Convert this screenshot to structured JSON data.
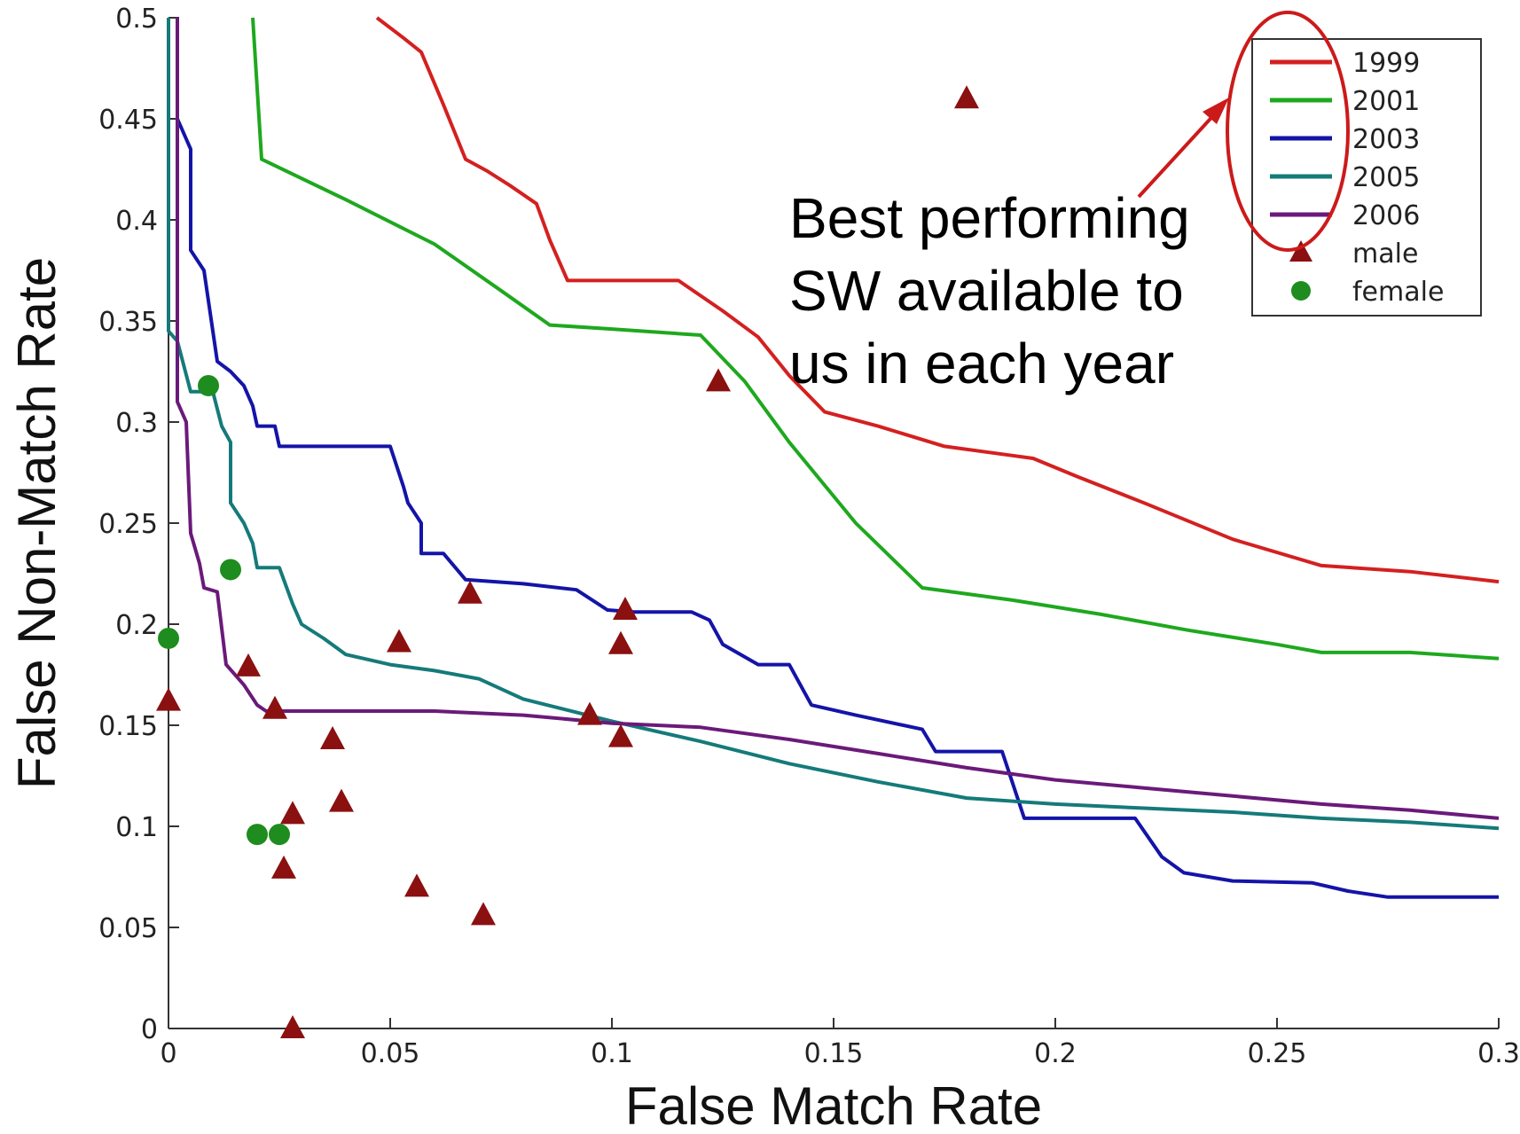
{
  "chart_data": {
    "type": "line",
    "xlabel": "False Match Rate",
    "ylabel": "False Non-Match Rate",
    "xlim": [
      0,
      0.3
    ],
    "ylim": [
      0,
      0.5
    ],
    "xticks": [
      "0",
      "0.05",
      "0.1",
      "0.15",
      "0.2",
      "0.25",
      "0.3"
    ],
    "yticks": [
      "0",
      "0.05",
      "0.1",
      "0.15",
      "0.2",
      "0.25",
      "0.3",
      "0.35",
      "0.4",
      "0.45",
      "0.5"
    ],
    "grid": false,
    "legend_position": "top-right",
    "series": [
      {
        "name": "1999",
        "color": "#d42020",
        "points": [
          [
            0.047,
            0.5
          ],
          [
            0.053,
            0.49
          ],
          [
            0.057,
            0.483
          ],
          [
            0.062,
            0.457
          ],
          [
            0.067,
            0.43
          ],
          [
            0.072,
            0.424
          ],
          [
            0.077,
            0.417
          ],
          [
            0.083,
            0.408
          ],
          [
            0.086,
            0.39
          ],
          [
            0.09,
            0.37
          ],
          [
            0.1,
            0.37
          ],
          [
            0.115,
            0.37
          ],
          [
            0.125,
            0.355
          ],
          [
            0.133,
            0.342
          ],
          [
            0.14,
            0.323
          ],
          [
            0.148,
            0.305
          ],
          [
            0.16,
            0.298
          ],
          [
            0.175,
            0.288
          ],
          [
            0.185,
            0.285
          ],
          [
            0.195,
            0.282
          ],
          [
            0.205,
            0.273
          ],
          [
            0.22,
            0.26
          ],
          [
            0.24,
            0.242
          ],
          [
            0.26,
            0.229
          ],
          [
            0.28,
            0.226
          ],
          [
            0.3,
            0.221
          ]
        ]
      },
      {
        "name": "2001",
        "color": "#1ea81e",
        "points": [
          [
            0.019,
            0.5
          ],
          [
            0.021,
            0.43
          ],
          [
            0.04,
            0.41
          ],
          [
            0.06,
            0.388
          ],
          [
            0.075,
            0.365
          ],
          [
            0.086,
            0.348
          ],
          [
            0.1,
            0.346
          ],
          [
            0.12,
            0.343
          ],
          [
            0.13,
            0.32
          ],
          [
            0.14,
            0.29
          ],
          [
            0.155,
            0.25
          ],
          [
            0.17,
            0.218
          ],
          [
            0.19,
            0.212
          ],
          [
            0.21,
            0.205
          ],
          [
            0.23,
            0.197
          ],
          [
            0.25,
            0.19
          ],
          [
            0.26,
            0.186
          ],
          [
            0.28,
            0.186
          ],
          [
            0.3,
            0.183
          ]
        ]
      },
      {
        "name": "2003",
        "color": "#1414a8",
        "points": [
          [
            0.002,
            0.45
          ],
          [
            0.005,
            0.435
          ],
          [
            0.005,
            0.385
          ],
          [
            0.008,
            0.375
          ],
          [
            0.009,
            0.36
          ],
          [
            0.011,
            0.33
          ],
          [
            0.014,
            0.325
          ],
          [
            0.017,
            0.318
          ],
          [
            0.019,
            0.308
          ],
          [
            0.02,
            0.298
          ],
          [
            0.024,
            0.298
          ],
          [
            0.025,
            0.288
          ],
          [
            0.05,
            0.288
          ],
          [
            0.053,
            0.268
          ],
          [
            0.054,
            0.26
          ],
          [
            0.057,
            0.25
          ],
          [
            0.057,
            0.235
          ],
          [
            0.062,
            0.235
          ],
          [
            0.067,
            0.222
          ],
          [
            0.08,
            0.22
          ],
          [
            0.092,
            0.217
          ],
          [
            0.099,
            0.207
          ],
          [
            0.105,
            0.206
          ],
          [
            0.118,
            0.206
          ],
          [
            0.122,
            0.202
          ],
          [
            0.125,
            0.19
          ],
          [
            0.133,
            0.18
          ],
          [
            0.14,
            0.18
          ],
          [
            0.145,
            0.16
          ],
          [
            0.155,
            0.155
          ],
          [
            0.17,
            0.148
          ],
          [
            0.173,
            0.137
          ],
          [
            0.18,
            0.137
          ],
          [
            0.188,
            0.137
          ],
          [
            0.193,
            0.104
          ],
          [
            0.21,
            0.104
          ],
          [
            0.218,
            0.104
          ],
          [
            0.224,
            0.085
          ],
          [
            0.229,
            0.077
          ],
          [
            0.24,
            0.073
          ],
          [
            0.258,
            0.072
          ],
          [
            0.266,
            0.068
          ],
          [
            0.275,
            0.065
          ],
          [
            0.3,
            0.065
          ]
        ]
      },
      {
        "name": "2005",
        "color": "#157a7a",
        "points": [
          [
            0.0,
            0.5
          ],
          [
            0.0,
            0.345
          ],
          [
            0.002,
            0.34
          ],
          [
            0.005,
            0.315
          ],
          [
            0.01,
            0.315
          ],
          [
            0.012,
            0.298
          ],
          [
            0.014,
            0.29
          ],
          [
            0.014,
            0.26
          ],
          [
            0.017,
            0.25
          ],
          [
            0.019,
            0.24
          ],
          [
            0.02,
            0.228
          ],
          [
            0.025,
            0.228
          ],
          [
            0.028,
            0.21
          ],
          [
            0.03,
            0.2
          ],
          [
            0.035,
            0.193
          ],
          [
            0.04,
            0.185
          ],
          [
            0.05,
            0.18
          ],
          [
            0.06,
            0.177
          ],
          [
            0.07,
            0.173
          ],
          [
            0.08,
            0.163
          ],
          [
            0.1,
            0.152
          ],
          [
            0.12,
            0.142
          ],
          [
            0.14,
            0.131
          ],
          [
            0.16,
            0.122
          ],
          [
            0.18,
            0.114
          ],
          [
            0.2,
            0.111
          ],
          [
            0.22,
            0.109
          ],
          [
            0.24,
            0.107
          ],
          [
            0.26,
            0.104
          ],
          [
            0.28,
            0.102
          ],
          [
            0.3,
            0.099
          ]
        ]
      },
      {
        "name": "2006",
        "color": "#6a1a7a",
        "points": [
          [
            0.002,
            0.5
          ],
          [
            0.002,
            0.31
          ],
          [
            0.004,
            0.3
          ],
          [
            0.005,
            0.245
          ],
          [
            0.007,
            0.23
          ],
          [
            0.008,
            0.218
          ],
          [
            0.011,
            0.216
          ],
          [
            0.013,
            0.18
          ],
          [
            0.017,
            0.17
          ],
          [
            0.02,
            0.16
          ],
          [
            0.022,
            0.157
          ],
          [
            0.06,
            0.157
          ],
          [
            0.08,
            0.155
          ],
          [
            0.1,
            0.151
          ],
          [
            0.12,
            0.149
          ],
          [
            0.14,
            0.143
          ],
          [
            0.16,
            0.136
          ],
          [
            0.18,
            0.129
          ],
          [
            0.2,
            0.123
          ],
          [
            0.22,
            0.119
          ],
          [
            0.24,
            0.115
          ],
          [
            0.26,
            0.111
          ],
          [
            0.28,
            0.108
          ],
          [
            0.3,
            0.104
          ]
        ]
      },
      {
        "name": "male",
        "color": "#8b1010",
        "marker": "triangle",
        "points": [
          [
            0.18,
            0.46
          ],
          [
            0.124,
            0.32
          ],
          [
            0.068,
            0.215
          ],
          [
            0.103,
            0.207
          ],
          [
            0.102,
            0.19
          ],
          [
            0.052,
            0.191
          ],
          [
            0.018,
            0.179
          ],
          [
            0.0,
            0.162
          ],
          [
            0.024,
            0.158
          ],
          [
            0.095,
            0.155
          ],
          [
            0.037,
            0.143
          ],
          [
            0.102,
            0.144
          ],
          [
            0.039,
            0.112
          ],
          [
            0.028,
            0.106
          ],
          [
            0.026,
            0.079
          ],
          [
            0.056,
            0.07
          ],
          [
            0.071,
            0.056
          ],
          [
            0.028,
            0.0
          ]
        ]
      },
      {
        "name": "female",
        "color": "#1e8c1e",
        "marker": "circle",
        "points": [
          [
            0.009,
            0.318
          ],
          [
            0.014,
            0.227
          ],
          [
            0.0,
            0.193
          ],
          [
            0.02,
            0.096
          ],
          [
            0.025,
            0.096
          ]
        ]
      }
    ],
    "annotation": {
      "lines": [
        "Best performing",
        "SW available to",
        "us in each year"
      ],
      "highlight_color": "#cc1a1a"
    }
  }
}
